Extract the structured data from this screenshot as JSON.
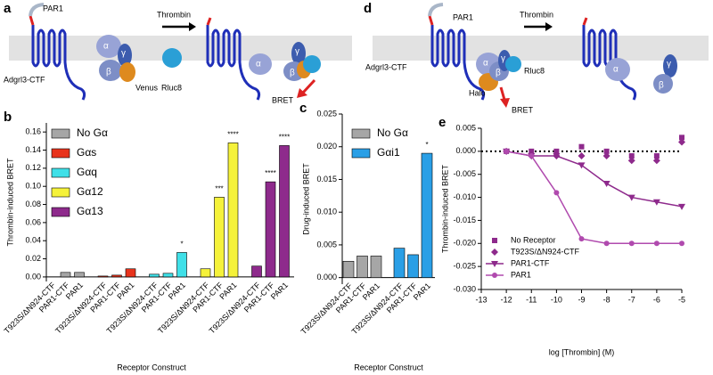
{
  "diagrams": [
    {
      "panel": "a",
      "labels": [
        "PAR1",
        "Thrombin",
        "Adgrl3-CTF",
        "α",
        "γ",
        "β",
        "Venus",
        "Rluc8",
        "α",
        "γ",
        "β",
        "BRET"
      ]
    },
    {
      "panel": "d",
      "labels": [
        "PAR1",
        "Thrombin",
        "Adgrl3-CTF",
        "α",
        "γ",
        "β",
        "Rluc8",
        "Halo",
        "BRET",
        "α",
        "γ",
        "β"
      ]
    }
  ],
  "chart_data": [
    {
      "panel": "b",
      "type": "bar",
      "ylabel": "Thrombin-induced BRET",
      "xlabel": "Receptor Construct",
      "categories": [
        "T923S/ΔN924-CTF",
        "PAR1-CTF",
        "PAR1"
      ],
      "series": [
        {
          "name": "No Gα",
          "color": "#a6a6a6",
          "values": [
            0.0,
            0.005,
            0.005
          ]
        },
        {
          "name": "Gαs",
          "color": "#e8331c",
          "values": [
            0.001,
            0.002,
            0.009
          ]
        },
        {
          "name": "Gαq",
          "color": "#3fe0e8",
          "values": [
            0.003,
            0.004,
            0.027
          ],
          "stars": [
            null,
            null,
            "*"
          ]
        },
        {
          "name": "Gα12",
          "color": "#f5f23a",
          "values": [
            0.009,
            0.088,
            0.148
          ],
          "stars": [
            null,
            "***",
            "****"
          ]
        },
        {
          "name": "Gα13",
          "color": "#8e2a8c",
          "values": [
            0.012,
            0.105,
            0.145
          ],
          "stars": [
            null,
            "****",
            "****"
          ]
        }
      ],
      "ylim": [
        -0.005,
        0.17
      ],
      "yticks": [
        {
          "value": 0,
          "label": "0.00"
        },
        0.02,
        0.04,
        0.06,
        0.08,
        {
          "value": 0.1,
          "label": "0.10"
        },
        0.12,
        0.14,
        0.16
      ]
    },
    {
      "panel": "c",
      "type": "bar",
      "ylabel": "Drug-induced BRET",
      "xlabel": "Receptor Construct",
      "categories": [
        "T923S/ΔN924-CTF",
        "PAR1-CTF",
        "PAR1"
      ],
      "series": [
        {
          "name": "No Gα",
          "color": "#a6a6a6",
          "values": [
            0.0025,
            0.0033,
            0.0033
          ]
        },
        {
          "name": "Gαi1",
          "color": "#2a9fe6",
          "values": [
            0.0045,
            0.0035,
            0.019
          ],
          "stars": [
            null,
            null,
            "*"
          ]
        }
      ],
      "ylim": [
        -0.001,
        0.025
      ],
      "yticks": [
        {
          "value": 0,
          "label": "0.000"
        },
        0.005,
        {
          "value": 0.01,
          "label": "0.010"
        },
        0.015,
        {
          "value": 0.02,
          "label": "0.020"
        },
        0.025
      ]
    },
    {
      "panel": "e",
      "type": "scatter",
      "ylabel": "Thrombin-induced BRET",
      "xlabel": "log [Thrombin] (M)",
      "x": [
        -12,
        -11,
        -10,
        -9,
        -8,
        -7,
        -6,
        -5
      ],
      "series": [
        {
          "name": "No Receptor",
          "color": "#8e2a8c",
          "marker": "square",
          "values": [
            0.0,
            0.0,
            0.0,
            0.001,
            0.0,
            -0.001,
            -0.001,
            0.003
          ]
        },
        {
          "name": "T923S/ΔN924-CTF",
          "color": "#8e2a8c",
          "marker": "diamond",
          "values": [
            0.0,
            -0.001,
            -0.001,
            -0.001,
            -0.001,
            -0.002,
            -0.002,
            0.002
          ]
        },
        {
          "name": "PAR1-CTF",
          "color": "#8e2a8c",
          "marker": "triangle-down",
          "line": true,
          "values": [
            0.0,
            -0.001,
            -0.001,
            -0.003,
            -0.007,
            -0.01,
            -0.011,
            -0.012
          ]
        },
        {
          "name": "PAR1",
          "color": "#b04aae",
          "marker": "circle",
          "line": true,
          "values": [
            0.0,
            -0.001,
            -0.009,
            -0.019,
            -0.02,
            -0.02,
            -0.02,
            -0.02
          ]
        }
      ],
      "xlim": [
        -13,
        -5
      ],
      "ylim": [
        -0.03,
        0.005
      ],
      "zero_line": true,
      "xticks": [
        -13,
        -12,
        -11,
        -10,
        -9,
        -8,
        -7,
        -6,
        -5
      ],
      "yticks": [
        0.005,
        {
          "value": 0,
          "label": "0.000"
        },
        -0.005,
        {
          "value": -0.01,
          "label": "-0.010"
        },
        -0.015,
        {
          "value": -0.02,
          "label": "-0.020"
        },
        -0.025,
        {
          "value": -0.03,
          "label": "-0.030"
        }
      ]
    }
  ]
}
